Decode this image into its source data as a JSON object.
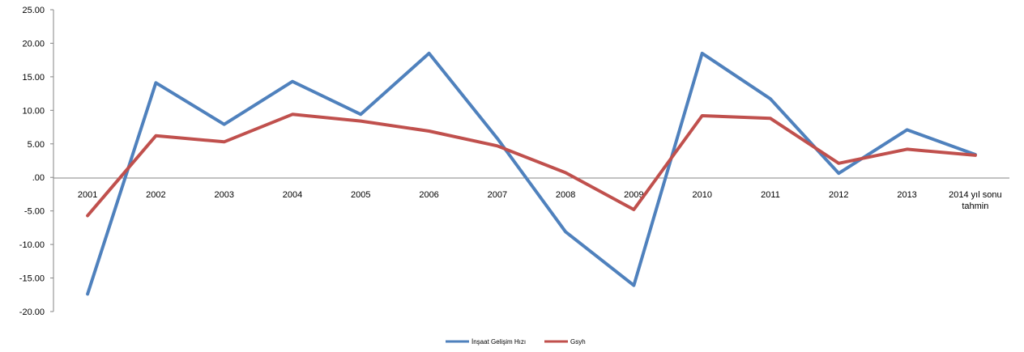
{
  "chart_data": {
    "type": "line",
    "categories": [
      "2001",
      "2002",
      "2003",
      "2004",
      "2005",
      "2006",
      "2007",
      "2008",
      "2009",
      "2010",
      "2011",
      "2012",
      "2013",
      "2014 yıl sonu tahmin"
    ],
    "category_lines": [
      [
        "2001"
      ],
      [
        "2002"
      ],
      [
        "2003"
      ],
      [
        "2004"
      ],
      [
        "2005"
      ],
      [
        "2006"
      ],
      [
        "2007"
      ],
      [
        "2008"
      ],
      [
        "2009"
      ],
      [
        "2010"
      ],
      [
        "2011"
      ],
      [
        "2012"
      ],
      [
        "2013"
      ],
      [
        "2014 yıl sonu",
        "tahmin"
      ]
    ],
    "y_ticks": [
      "25.00",
      "20.00",
      "15.00",
      "10.00",
      "5.00",
      ".00",
      "-5.00",
      "-10.00",
      "-15.00",
      "-20.00"
    ],
    "ylim": [
      -20,
      25
    ],
    "series": [
      {
        "name": "İnşaat Gelişim Hızı",
        "color": "#4F81BD",
        "values": [
          -17.4,
          14.1,
          7.9,
          14.3,
          9.4,
          18.5,
          5.8,
          -8.1,
          -16.1,
          18.5,
          11.7,
          0.6,
          7.1,
          3.4
        ]
      },
      {
        "name": "Gsyh",
        "color": "#C0504D",
        "values": [
          -5.7,
          6.2,
          5.3,
          9.4,
          8.4,
          6.9,
          4.7,
          0.7,
          -4.8,
          9.2,
          8.8,
          2.1,
          4.2,
          3.3
        ]
      }
    ],
    "legend_position": "bottom",
    "grid": false
  }
}
